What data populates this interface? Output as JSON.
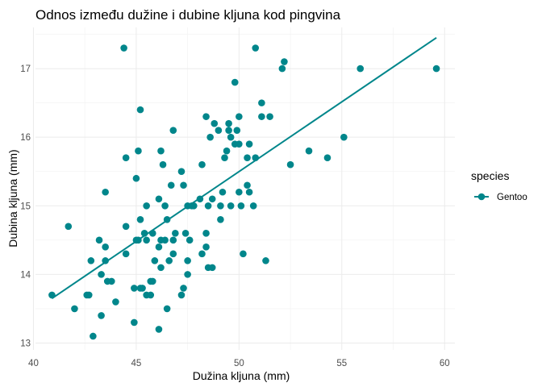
{
  "chart_data": {
    "type": "scatter",
    "title": "Odnos između dužine i dubine kljuna kod pingvina",
    "xlabel": "Dužina kljuna (mm)",
    "ylabel": "Dubina kljuna (mm)",
    "xlim": [
      40.1,
      60.5
    ],
    "ylim": [
      12.9,
      17.6
    ],
    "x_ticks": [
      40,
      45,
      50,
      55,
      60
    ],
    "y_ticks": [
      13,
      14,
      15,
      16,
      17
    ],
    "grid": true,
    "legend": {
      "title": "species",
      "position": "right",
      "entries": [
        "Gentoo"
      ]
    },
    "color": "#00868B",
    "series": [
      {
        "name": "Gentoo",
        "points": [
          [
            40.9,
            13.7
          ],
          [
            41.7,
            14.7
          ],
          [
            42.0,
            13.5
          ],
          [
            42.6,
            13.7
          ],
          [
            42.7,
            13.7
          ],
          [
            42.8,
            14.2
          ],
          [
            42.9,
            13.1
          ],
          [
            43.2,
            14.5
          ],
          [
            43.3,
            14.0
          ],
          [
            43.3,
            13.4
          ],
          [
            43.5,
            14.4
          ],
          [
            43.5,
            15.2
          ],
          [
            43.6,
            13.9
          ],
          [
            43.5,
            14.2
          ],
          [
            43.8,
            13.9
          ],
          [
            44.0,
            13.6
          ],
          [
            44.4,
            17.3
          ],
          [
            44.5,
            14.3
          ],
          [
            44.5,
            14.7
          ],
          [
            44.5,
            15.7
          ],
          [
            44.9,
            13.3
          ],
          [
            44.9,
            13.8
          ],
          [
            45.0,
            14.5
          ],
          [
            45.1,
            14.5
          ],
          [
            45.0,
            15.4
          ],
          [
            45.1,
            15.8
          ],
          [
            45.2,
            16.4
          ],
          [
            45.2,
            14.8
          ],
          [
            45.2,
            13.8
          ],
          [
            45.3,
            13.8
          ],
          [
            45.4,
            14.6
          ],
          [
            45.5,
            13.7
          ],
          [
            45.5,
            14.5
          ],
          [
            45.5,
            15.0
          ],
          [
            45.7,
            13.9
          ],
          [
            45.7,
            13.7
          ],
          [
            45.8,
            13.9
          ],
          [
            45.8,
            14.6
          ],
          [
            45.9,
            14.2
          ],
          [
            46.1,
            14.4
          ],
          [
            46.1,
            15.1
          ],
          [
            46.1,
            13.2
          ],
          [
            46.2,
            14.5
          ],
          [
            46.2,
            14.1
          ],
          [
            46.2,
            15.8
          ],
          [
            46.3,
            15.6
          ],
          [
            46.4,
            15.0
          ],
          [
            46.4,
            14.5
          ],
          [
            46.5,
            13.5
          ],
          [
            46.5,
            14.8
          ],
          [
            46.6,
            14.2
          ],
          [
            46.7,
            15.3
          ],
          [
            46.8,
            14.3
          ],
          [
            46.8,
            14.5
          ],
          [
            46.8,
            16.1
          ],
          [
            46.9,
            14.6
          ],
          [
            47.2,
            15.5
          ],
          [
            47.2,
            13.7
          ],
          [
            47.3,
            15.3
          ],
          [
            47.3,
            13.8
          ],
          [
            47.4,
            14.6
          ],
          [
            47.5,
            14.0
          ],
          [
            47.5,
            14.2
          ],
          [
            47.5,
            15.0
          ],
          [
            47.6,
            14.5
          ],
          [
            47.7,
            15.0
          ],
          [
            47.8,
            15.0
          ],
          [
            48.1,
            15.1
          ],
          [
            48.2,
            14.3
          ],
          [
            48.2,
            15.6
          ],
          [
            48.4,
            14.6
          ],
          [
            48.4,
            14.4
          ],
          [
            48.5,
            14.1
          ],
          [
            48.5,
            15.0
          ],
          [
            48.4,
            16.3
          ],
          [
            48.6,
            16.0
          ],
          [
            48.7,
            14.1
          ],
          [
            48.7,
            15.1
          ],
          [
            48.8,
            16.2
          ],
          [
            49.0,
            16.1
          ],
          [
            49.1,
            14.8
          ],
          [
            49.1,
            15.0
          ],
          [
            49.2,
            15.2
          ],
          [
            49.3,
            15.7
          ],
          [
            49.4,
            15.8
          ],
          [
            49.5,
            16.1
          ],
          [
            49.5,
            16.2
          ],
          [
            49.6,
            16.0
          ],
          [
            49.6,
            15.0
          ],
          [
            49.8,
            16.8
          ],
          [
            49.8,
            15.9
          ],
          [
            49.9,
            16.1
          ],
          [
            50.0,
            15.2
          ],
          [
            50.0,
            15.9
          ],
          [
            50.0,
            16.3
          ],
          [
            50.1,
            15.0
          ],
          [
            50.2,
            14.3
          ],
          [
            50.4,
            15.3
          ],
          [
            50.4,
            15.7
          ],
          [
            50.5,
            15.2
          ],
          [
            50.5,
            15.9
          ],
          [
            50.7,
            15.0
          ],
          [
            50.8,
            15.7
          ],
          [
            50.8,
            17.3
          ],
          [
            51.1,
            16.3
          ],
          [
            51.1,
            16.5
          ],
          [
            51.3,
            14.2
          ],
          [
            51.5,
            16.3
          ],
          [
            52.1,
            17.0
          ],
          [
            52.2,
            17.1
          ],
          [
            52.5,
            15.6
          ],
          [
            53.4,
            15.8
          ],
          [
            54.3,
            15.7
          ],
          [
            55.1,
            16.0
          ],
          [
            55.9,
            17.0
          ],
          [
            59.6,
            17.0
          ]
        ]
      }
    ],
    "trend_line": {
      "x": [
        40.9,
        59.6
      ],
      "y": [
        13.65,
        17.45
      ]
    }
  }
}
